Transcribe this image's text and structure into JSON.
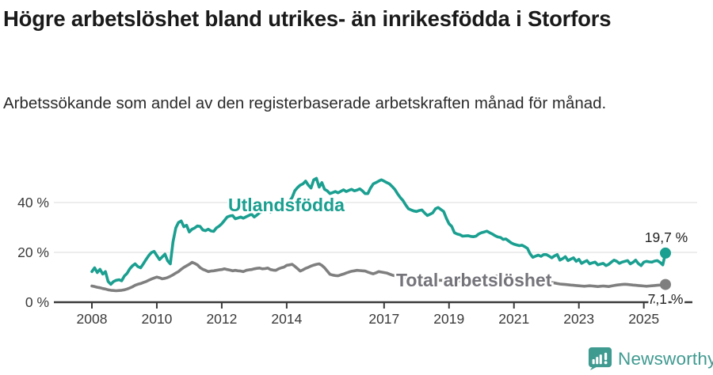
{
  "chart_data": {
    "type": "line",
    "title": "Högre arbetslöshet bland utrikes- än inrikesfödda i Storfors",
    "subtitle": "Arbetssökande som andel av den registerbaserade arbetskraften månad för månad.",
    "unit": "%",
    "x_monthly_start": "2008-01",
    "x_monthly_end": "2025-09",
    "x_ticks": [
      2008,
      2010,
      2012,
      2014,
      2017,
      2019,
      2021,
      2023,
      2025
    ],
    "y_ticks": [
      0,
      20,
      40
    ],
    "y_tick_suffix": " %",
    "ylim": [
      0,
      52
    ],
    "grid": "horizontal",
    "legend": "inline-labels",
    "axis_color": "#3a3a3a",
    "grid_color": "#e2e2e2",
    "series": [
      {
        "name": "Utlandsfödda",
        "color": "#1a9f90",
        "end_label": "19,7 %",
        "end_value": 19.7,
        "values": [
          12.3,
          13.8,
          11.9,
          13.2,
          11.3,
          12.3,
          8.3,
          7.2,
          8.3,
          8.8,
          9.0,
          8.6,
          10.5,
          11.6,
          13.4,
          14.6,
          15.4,
          14.3,
          13.8,
          15.4,
          17.1,
          18.7,
          19.9,
          20.4,
          18.7,
          17.1,
          18.2,
          19.3,
          16.6,
          15.4,
          24.3,
          29.8,
          32.0,
          32.6,
          30.3,
          30.9,
          28.2,
          29.3,
          29.8,
          30.6,
          30.4,
          29.0,
          28.7,
          29.3,
          28.6,
          28.4,
          29.8,
          30.5,
          31.5,
          32.8,
          34.2,
          34.6,
          34.8,
          33.5,
          33.8,
          34.2,
          33.7,
          34.3,
          34.8,
          35.3,
          34.2,
          35.0,
          35.9,
          36.4,
          36.7,
          37.0,
          36.1,
          36.8,
          37.5,
          38.3,
          38.8,
          39.1,
          39.7,
          40.5,
          42.0,
          44.7,
          46.0,
          47.0,
          47.5,
          48.6,
          47.0,
          45.8,
          49.1,
          49.7,
          46.2,
          48.0,
          45.3,
          44.7,
          43.6,
          44.0,
          44.4,
          43.9,
          44.5,
          45.1,
          44.4,
          44.9,
          45.3,
          44.7,
          45.0,
          45.5,
          44.7,
          43.6,
          43.6,
          45.8,
          47.5,
          48.0,
          48.6,
          49.1,
          48.6,
          48.0,
          47.5,
          46.4,
          45.2,
          43.5,
          42.0,
          40.8,
          39.0,
          37.5,
          37.0,
          36.6,
          36.4,
          36.8,
          37.0,
          35.8,
          34.8,
          35.3,
          35.9,
          37.5,
          38.0,
          37.2,
          36.4,
          33.7,
          31.5,
          30.4,
          27.9,
          27.4,
          27.1,
          26.5,
          26.6,
          26.7,
          26.4,
          26.3,
          26.5,
          27.4,
          27.9,
          28.2,
          28.5,
          27.9,
          27.4,
          26.7,
          26.2,
          26.0,
          25.2,
          25.4,
          24.6,
          23.8,
          23.3,
          23.0,
          22.7,
          22.9,
          22.3,
          21.6,
          19.4,
          18.0,
          18.5,
          18.9,
          18.4,
          19.1,
          19.1,
          18.5,
          17.8,
          18.6,
          19.1,
          16.9,
          17.5,
          18.3,
          16.7,
          17.3,
          17.8,
          16.4,
          17.2,
          15.6,
          16.2,
          16.7,
          15.4,
          15.8,
          16.1,
          15.0,
          15.3,
          15.6,
          14.7,
          15.2,
          16.1,
          16.9,
          16.4,
          15.6,
          16.1,
          16.4,
          16.7,
          15.4,
          16.0,
          16.9,
          15.5,
          14.7,
          16.1,
          16.4,
          16.2,
          16.1,
          16.5,
          16.7,
          16.0,
          15.0,
          19.7
        ]
      },
      {
        "name": "Total arbetslöshet",
        "color": "#7f7f7f",
        "label_color": "#74747a",
        "end_label": "7,1 %",
        "end_value": 7.1,
        "values": [
          6.5,
          6.3,
          6.0,
          5.8,
          5.5,
          5.3,
          5.0,
          4.8,
          4.7,
          4.6,
          4.7,
          4.8,
          5.0,
          5.3,
          5.7,
          6.2,
          6.8,
          7.2,
          7.5,
          7.9,
          8.3,
          8.8,
          9.3,
          9.7,
          10.1,
          9.8,
          9.4,
          9.6,
          9.9,
          10.4,
          11.0,
          11.7,
          12.3,
          13.2,
          14.0,
          14.6,
          15.2,
          16.0,
          15.6,
          15.0,
          13.9,
          13.2,
          12.8,
          12.3,
          12.5,
          12.6,
          12.8,
          13.0,
          13.1,
          13.4,
          13.1,
          12.9,
          12.6,
          12.8,
          12.6,
          12.5,
          12.3,
          12.8,
          13.0,
          13.1,
          13.4,
          13.6,
          13.7,
          13.4,
          13.5,
          13.7,
          13.1,
          12.9,
          12.8,
          13.4,
          13.8,
          14.1,
          14.8,
          15.0,
          15.2,
          14.4,
          13.5,
          12.5,
          13.0,
          13.6,
          14.0,
          14.5,
          14.9,
          15.2,
          15.4,
          14.8,
          13.8,
          12.5,
          11.2,
          10.9,
          10.7,
          10.6,
          11.0,
          11.3,
          11.7,
          12.1,
          12.4,
          12.6,
          12.8,
          12.7,
          12.6,
          12.5,
          12.1,
          11.7,
          11.4,
          11.8,
          12.3,
          12.1,
          11.9,
          11.7,
          11.3,
          10.9,
          10.6,
          10.4,
          10.2,
          10.0,
          9.9,
          9.8,
          9.7,
          9.6,
          9.5,
          9.4,
          9.3,
          9.2,
          9.1,
          9.0,
          8.9,
          8.9,
          8.8,
          8.8,
          8.7,
          8.7,
          8.7,
          8.6,
          8.6,
          8.5,
          8.5,
          8.6,
          8.7,
          8.7,
          8.6,
          8.5,
          8.5,
          8.6,
          8.8,
          9.0,
          9.5,
          10.0,
          10.3,
          10.4,
          10.5,
          10.4,
          10.2,
          10.0,
          9.8,
          9.6,
          9.4,
          9.2,
          9.0,
          8.9,
          8.8,
          8.6,
          8.4,
          8.2,
          8.1,
          8.0,
          8.0,
          8.0,
          8.1,
          8.0,
          7.9,
          7.7,
          7.5,
          7.3,
          7.2,
          7.1,
          7.0,
          6.9,
          6.8,
          6.7,
          6.6,
          6.5,
          6.4,
          6.5,
          6.6,
          6.5,
          6.4,
          6.3,
          6.4,
          6.5,
          6.4,
          6.3,
          6.5,
          6.7,
          6.9,
          7.0,
          7.1,
          7.2,
          7.1,
          7.0,
          6.9,
          6.8,
          6.7,
          6.6,
          6.5,
          6.4,
          6.5,
          6.6,
          6.7,
          6.8,
          6.9,
          7.0,
          7.1
        ]
      }
    ]
  },
  "footer": {
    "brand": "Newsworthy",
    "brand_color": "#3f9a90",
    "logo_icon": "bar-chart-speech-bubble"
  }
}
